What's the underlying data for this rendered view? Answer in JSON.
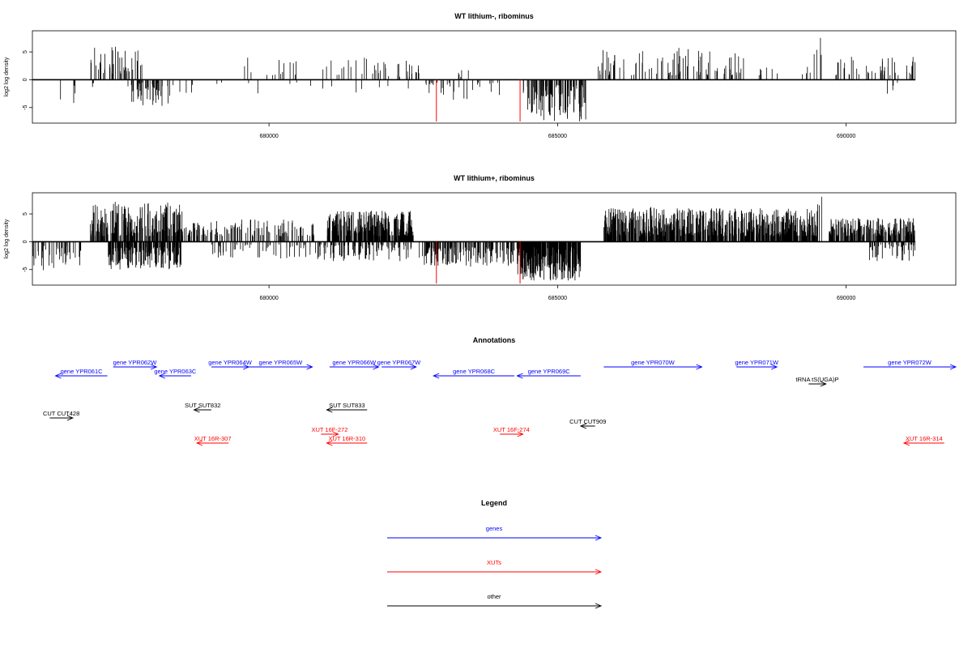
{
  "colors": {
    "gene": "#0000ff",
    "xut": "#ff0000",
    "other": "#000000",
    "marker": "#ff0000",
    "bar": "#000000"
  },
  "chart_data": [
    {
      "type": "bar",
      "title": "WT lithium-, ribominus",
      "ylabel": "log2 log density",
      "xlim": [
        675900,
        691900
      ],
      "ylim": [
        -7.8,
        8.8
      ],
      "yticks": [
        5,
        0,
        -5
      ],
      "xticks": [
        680000,
        685000,
        690000
      ],
      "coverage": [
        675900,
        691200
      ],
      "markers": [
        682900,
        684350
      ],
      "series": [
        {
          "start": 676300,
          "end": 676800,
          "density": 0.008,
          "min": 0.5,
          "max": 4.2,
          "sign": -1
        },
        {
          "start": 676800,
          "end": 677000,
          "density": 0.015,
          "min": 0.5,
          "max": 1.6,
          "sign": -1
        },
        {
          "start": 676900,
          "end": 677800,
          "density": 0.05,
          "min": 1,
          "max": 6.3,
          "sign": 1
        },
        {
          "start": 677550,
          "end": 678300,
          "density": 0.07,
          "min": 0.5,
          "max": 4.7,
          "sign": -1
        },
        {
          "start": 678300,
          "end": 679200,
          "density": 0.008,
          "min": 0.5,
          "max": 2.5,
          "sign": -1
        },
        {
          "start": 679500,
          "end": 682500,
          "density": 0.012,
          "min": 0.8,
          "max": 4,
          "sign": 1
        },
        {
          "start": 679500,
          "end": 682500,
          "density": 0.004,
          "min": 0.5,
          "max": 2.5,
          "sign": -1
        },
        {
          "start": 682000,
          "end": 682600,
          "density": 0.03,
          "min": 0.5,
          "max": 3.5,
          "sign": 1
        },
        {
          "start": 682700,
          "end": 684100,
          "density": 0.02,
          "min": 0.5,
          "max": 3.8,
          "sign": -1
        },
        {
          "start": 683000,
          "end": 683600,
          "density": 0.008,
          "min": 0.5,
          "max": 2,
          "sign": 1
        },
        {
          "start": 684400,
          "end": 685500,
          "density": 0.1,
          "min": 1,
          "max": 7.5,
          "sign": -1
        },
        {
          "start": 685700,
          "end": 688300,
          "density": 0.035,
          "min": 0.8,
          "max": 6,
          "sign": 1
        },
        {
          "start": 688300,
          "end": 689400,
          "density": 0.01,
          "min": 0.8,
          "max": 3,
          "sign": 1
        },
        {
          "start": 689400,
          "end": 689600,
          "density": 0.02,
          "min": 1,
          "max": 8,
          "sign": 1
        },
        {
          "start": 689800,
          "end": 691200,
          "density": 0.03,
          "min": 0.8,
          "max": 4.3,
          "sign": 1
        },
        {
          "start": 690700,
          "end": 690900,
          "density": 0.02,
          "min": 0.5,
          "max": 3.3,
          "sign": -1
        }
      ]
    },
    {
      "type": "bar",
      "title": "WT lithium+, ribominus",
      "ylabel": "log2 log density",
      "xlim": [
        675900,
        691900
      ],
      "ylim": [
        -7.8,
        8.8
      ],
      "yticks": [
        5,
        0,
        -5
      ],
      "xticks": [
        680000,
        685000,
        690000
      ],
      "coverage": [
        675900,
        691200
      ],
      "markers": [
        682900,
        684350
      ],
      "series": [
        {
          "start": 675900,
          "end": 676800,
          "density": 0.05,
          "min": 0.8,
          "max": 5.3,
          "sign": -1
        },
        {
          "start": 676900,
          "end": 678500,
          "density": 0.15,
          "min": 1,
          "max": 7.2,
          "sign": 1
        },
        {
          "start": 677200,
          "end": 678500,
          "density": 0.15,
          "min": 1,
          "max": 5,
          "sign": -1
        },
        {
          "start": 678500,
          "end": 680800,
          "density": 0.05,
          "min": 1,
          "max": 4,
          "sign": 1
        },
        {
          "start": 679000,
          "end": 680800,
          "density": 0.03,
          "min": 0.5,
          "max": 3,
          "sign": -1
        },
        {
          "start": 681000,
          "end": 682500,
          "density": 0.22,
          "min": 1,
          "max": 5.6,
          "sign": 1
        },
        {
          "start": 680800,
          "end": 682500,
          "density": 0.06,
          "min": 0.5,
          "max": 3.5,
          "sign": -1
        },
        {
          "start": 682600,
          "end": 684300,
          "density": 0.08,
          "min": 1,
          "max": 4.5,
          "sign": -1
        },
        {
          "start": 684300,
          "end": 685400,
          "density": 0.3,
          "min": 1,
          "max": 7,
          "sign": -1
        },
        {
          "start": 685800,
          "end": 689500,
          "density": 0.2,
          "min": 1,
          "max": 6,
          "sign": 1
        },
        {
          "start": 686600,
          "end": 686700,
          "density": 0.03,
          "min": 6,
          "max": 8.4,
          "sign": 1
        },
        {
          "start": 689500,
          "end": 689600,
          "density": 0.03,
          "min": 6,
          "max": 8.2,
          "sign": 1
        },
        {
          "start": 689700,
          "end": 691200,
          "density": 0.15,
          "min": 1,
          "max": 4.3,
          "sign": 1
        },
        {
          "start": 690400,
          "end": 691200,
          "density": 0.06,
          "min": 0.5,
          "max": 3.6,
          "sign": -1
        }
      ]
    }
  ],
  "annotations": {
    "title": "Annotations",
    "xlim": [
      675900,
      691900
    ],
    "features": [
      {
        "label": "gene YPR061C",
        "type": "gene",
        "start": 676300,
        "end": 677200,
        "dir": -1,
        "row": 1
      },
      {
        "label": "gene YPR062W",
        "type": "gene",
        "start": 677300,
        "end": 678050,
        "dir": 1,
        "row": 0
      },
      {
        "label": "gene YPR063C",
        "type": "gene",
        "start": 678100,
        "end": 678650,
        "dir": -1,
        "row": 1
      },
      {
        "label": "gene YPR064W",
        "type": "gene",
        "start": 679000,
        "end": 679650,
        "dir": 1,
        "row": 0
      },
      {
        "label": "gene YPR065W",
        "type": "gene",
        "start": 679650,
        "end": 680750,
        "dir": 1,
        "row": 0
      },
      {
        "label": "gene YPR066W",
        "type": "gene",
        "start": 681050,
        "end": 681900,
        "dir": 1,
        "row": 0
      },
      {
        "label": "gene YPR067W",
        "type": "gene",
        "start": 681950,
        "end": 682550,
        "dir": 1,
        "row": 0
      },
      {
        "label": "gene YPR068C",
        "type": "gene",
        "start": 682850,
        "end": 684250,
        "dir": -1,
        "row": 1
      },
      {
        "label": "gene YPR069C",
        "type": "gene",
        "start": 684300,
        "end": 685400,
        "dir": -1,
        "row": 1
      },
      {
        "label": "gene YPR070W",
        "type": "gene",
        "start": 685800,
        "end": 687500,
        "dir": 1,
        "row": 0
      },
      {
        "label": "gene YPR071W",
        "type": "gene",
        "start": 688100,
        "end": 688800,
        "dir": 1,
        "row": 0
      },
      {
        "label": "tRNA tS(UGA)P",
        "type": "other",
        "start": 689350,
        "end": 689650,
        "dir": 1,
        "row": 2
      },
      {
        "label": "gene YPR072W",
        "type": "gene",
        "start": 690300,
        "end": 691900,
        "dir": 1,
        "row": 0
      },
      {
        "label": "CUT CUT428",
        "type": "other",
        "start": 676200,
        "end": 676600,
        "dir": 1,
        "row": 5
      },
      {
        "label": "SUT SUT832",
        "type": "other",
        "start": 678700,
        "end": 679000,
        "dir": -1,
        "row": 4
      },
      {
        "label": "SUT SUT833",
        "type": "other",
        "start": 681000,
        "end": 681700,
        "dir": -1,
        "row": 4
      },
      {
        "label": "CUT CUT909",
        "type": "other",
        "start": 685400,
        "end": 685650,
        "dir": -1,
        "row": 6
      },
      {
        "label": "XUT 16R-307",
        "type": "xut",
        "start": 678750,
        "end": 679300,
        "dir": -1,
        "row": 8
      },
      {
        "label": "XUT 16F-272",
        "type": "xut",
        "start": 680900,
        "end": 681200,
        "dir": 1,
        "row": 7
      },
      {
        "label": "XUT 16R-310",
        "type": "xut",
        "start": 681000,
        "end": 681700,
        "dir": -1,
        "row": 8
      },
      {
        "label": "XUT 16F-274",
        "type": "xut",
        "start": 684000,
        "end": 684400,
        "dir": 1,
        "row": 7
      },
      {
        "label": "XUT 16R-314",
        "type": "xut",
        "start": 691000,
        "end": 691700,
        "dir": -1,
        "row": 8
      }
    ]
  },
  "legend": {
    "title": "Legend",
    "items": [
      {
        "label": "genes",
        "type": "gene"
      },
      {
        "label": "XUTs",
        "type": "xut"
      },
      {
        "label": "other",
        "type": "other"
      }
    ]
  }
}
